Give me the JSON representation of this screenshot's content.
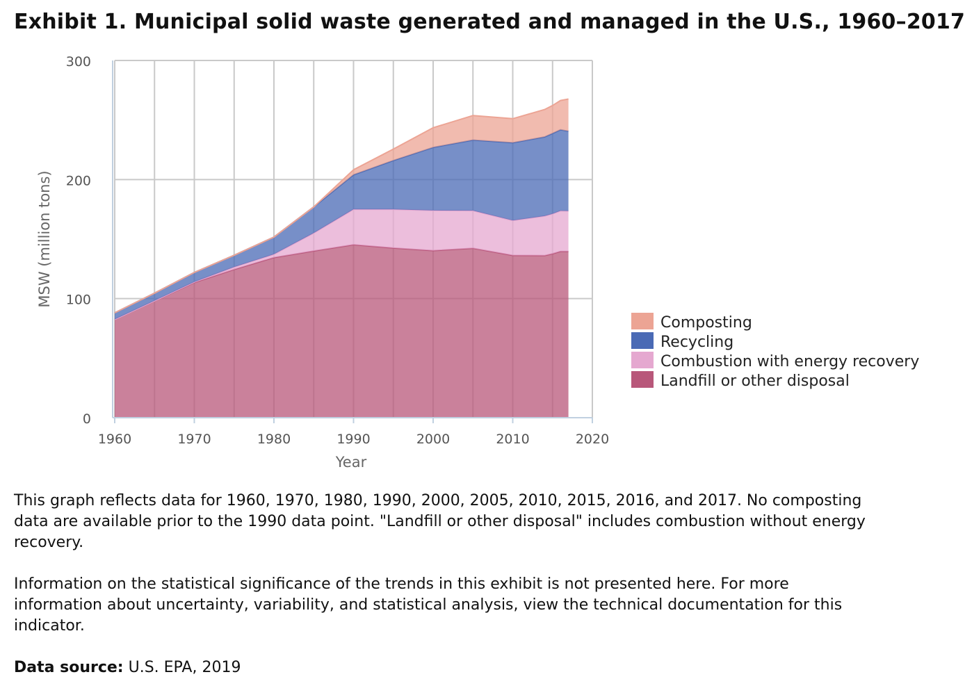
{
  "title": "Exhibit 1. Municipal solid waste generated and managed in the U.S., 1960–2017",
  "notes": [
    "This graph reflects data for 1960, 1970, 1980, 1990, 2000, 2005, 2010, 2015, 2016, and 2017. No composting data are available prior to the 1990 data point. \"Landfill or other disposal\" includes combustion without energy recovery.",
    "Information on the statistical significance of the trends in this exhibit is not presented here. For more information about uncertainty, variability, and statistical analysis, view the technical documentation for this indicator."
  ],
  "source": {
    "label": "Data source:",
    "text": "U.S. EPA, 2019"
  },
  "chart_data": {
    "type": "area",
    "stacked": true,
    "xlabel": "Year",
    "ylabel": "MSW (million tons)",
    "xlim": [
      1960,
      2020
    ],
    "ylim": [
      0,
      300
    ],
    "xticks": [
      1960,
      1970,
      1980,
      1990,
      2000,
      2010,
      2020
    ],
    "yticks": [
      0,
      100,
      200,
      300
    ],
    "grid": true,
    "legend_position": "right",
    "x": [
      1960,
      1965,
      1970,
      1975,
      1980,
      1985,
      1990,
      1995,
      2000,
      2005,
      2010,
      2014,
      2015,
      2016,
      2017
    ],
    "series": [
      {
        "name": "Landfill or other disposal",
        "color": "#b8577a",
        "values": [
          82.5,
          98,
          113.5,
          124.5,
          134.5,
          140,
          145.3,
          142.5,
          140.3,
          142.3,
          136.3,
          136.1,
          137.7,
          139.6,
          139.6
        ]
      },
      {
        "name": "Combustion with energy recovery",
        "color": "#e5a8d0",
        "values": [
          0,
          0.2,
          0.5,
          2.0,
          2.7,
          15.0,
          29.7,
          32.5,
          33.7,
          31.6,
          29.3,
          33.2,
          33.5,
          34.1,
          34.0
        ]
      },
      {
        "name": "Recycling",
        "color": "#4a6ab5",
        "values": [
          5.6,
          6.4,
          8.0,
          9.9,
          14.5,
          22.0,
          29.0,
          41.0,
          53.0,
          59.3,
          65.3,
          66.5,
          67.6,
          68.1,
          67.0
        ]
      },
      {
        "name": "Composting",
        "color": "#eca494",
        "values": [
          0,
          0,
          0,
          0,
          0,
          0,
          4.2,
          9.6,
          16.5,
          20.6,
          20.2,
          23.0,
          23.4,
          24.6,
          27.0
        ]
      }
    ]
  }
}
